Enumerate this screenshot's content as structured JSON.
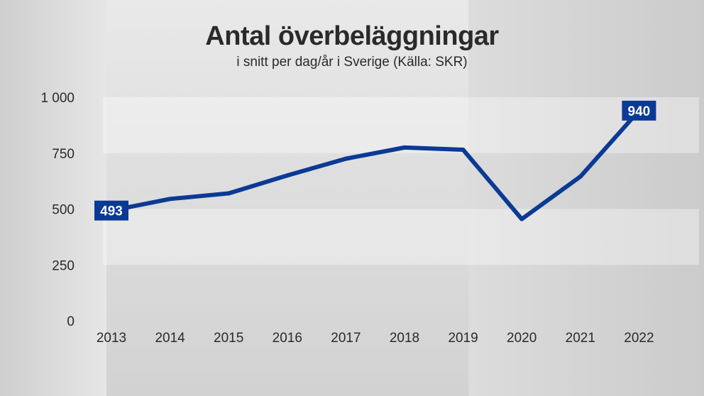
{
  "chart_data": {
    "type": "line",
    "title": "Antal överbeläggningar",
    "subtitle": "i snitt per dag/år i Sverige (Källa: SKR)",
    "xlabel": "",
    "ylabel": "",
    "x": [
      "2013",
      "2014",
      "2015",
      "2016",
      "2017",
      "2018",
      "2019",
      "2020",
      "2021",
      "2022"
    ],
    "series": [
      {
        "values": [
          493,
          545,
          570,
          650,
          725,
          775,
          765,
          455,
          645,
          940
        ]
      }
    ],
    "ylim": [
      0,
      1000
    ],
    "yticks": [
      0,
      250,
      500,
      750,
      1000
    ],
    "ytick_labels": [
      "0",
      "250",
      "500",
      "750",
      "1 000"
    ],
    "data_labels": [
      {
        "index": 0,
        "text": "493"
      },
      {
        "index": 9,
        "text": "940"
      }
    ],
    "grid": "horizontal bands",
    "legend": "none",
    "colors": {
      "line": "#0b3a94",
      "label_bg": "#0b3a94",
      "label_text": "#ffffff",
      "text": "#2a2a2a"
    }
  }
}
